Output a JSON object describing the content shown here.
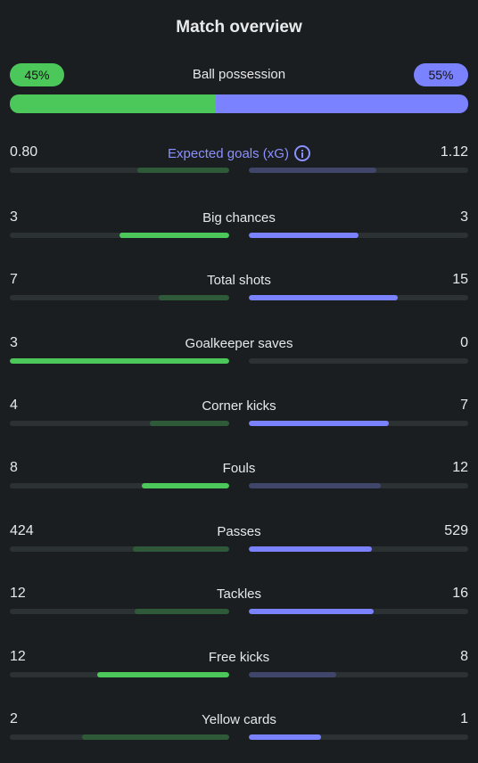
{
  "header": {
    "title": "Match overview"
  },
  "possession": {
    "label": "Ball possession",
    "home_text": "45%",
    "away_text": "55%",
    "home_pct": 45
  },
  "stats": [
    {
      "label": "Expected goals (xG)",
      "home": "0.80",
      "away": "1.12",
      "home_frac": 0.42,
      "away_frac": 0.58,
      "home_winner": false,
      "away_winner": false,
      "info": true
    },
    {
      "label": "Big chances",
      "home": "3",
      "away": "3",
      "home_frac": 0.5,
      "away_frac": 0.5,
      "home_winner": true,
      "away_winner": true
    },
    {
      "label": "Total shots",
      "home": "7",
      "away": "15",
      "home_frac": 0.32,
      "away_frac": 0.68,
      "home_winner": false,
      "away_winner": true
    },
    {
      "label": "Goalkeeper saves",
      "home": "3",
      "away": "0",
      "home_frac": 1.0,
      "away_frac": 0.0,
      "home_winner": true,
      "away_winner": false
    },
    {
      "label": "Corner kicks",
      "home": "4",
      "away": "7",
      "home_frac": 0.36,
      "away_frac": 0.64,
      "home_winner": false,
      "away_winner": true
    },
    {
      "label": "Fouls",
      "home": "8",
      "away": "12",
      "home_frac": 0.4,
      "away_frac": 0.6,
      "home_winner": true,
      "away_winner": false
    },
    {
      "label": "Passes",
      "home": "424",
      "away": "529",
      "home_frac": 0.44,
      "away_frac": 0.56,
      "home_winner": false,
      "away_winner": true
    },
    {
      "label": "Tackles",
      "home": "12",
      "away": "16",
      "home_frac": 0.43,
      "away_frac": 0.57,
      "home_winner": false,
      "away_winner": true
    },
    {
      "label": "Free kicks",
      "home": "12",
      "away": "8",
      "home_frac": 0.6,
      "away_frac": 0.4,
      "home_winner": true,
      "away_winner": false
    },
    {
      "label": "Yellow cards",
      "home": "2",
      "away": "1",
      "home_frac": 0.67,
      "away_frac": 0.33,
      "home_winner": false,
      "away_winner": true
    }
  ],
  "colors": {
    "home_strong": "#4cc85a",
    "home_weak": "#2f5a3a",
    "away_strong": "#7b82ff",
    "away_weak": "#404669"
  }
}
